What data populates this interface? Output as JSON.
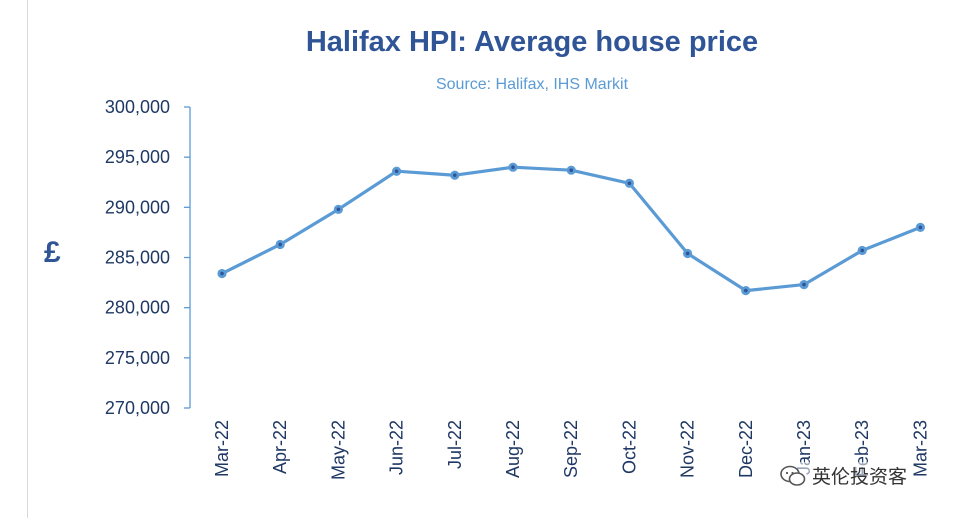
{
  "watermark": {
    "text": "英伦投资客",
    "icon": "wechat-bubble-icon"
  },
  "colors": {
    "title": "#2f5597",
    "subtitle": "#5b9bd5",
    "line": "#5b9bd5",
    "axis": "#5b9bd5",
    "ticks": "#1f3864"
  },
  "chart_data": {
    "type": "line",
    "title": "Halifax HPI: Average house price",
    "subtitle": "Source: Halifax, IHS Markit",
    "xlabel": "",
    "ylabel": "£",
    "ylim": [
      270000,
      300000
    ],
    "yticks": [
      "270,000",
      "275,000",
      "280,000",
      "285,000",
      "290,000",
      "295,000",
      "300,000"
    ],
    "ytick_values": [
      270000,
      275000,
      280000,
      285000,
      290000,
      295000,
      300000
    ],
    "categories": [
      "Mar-22",
      "Apr-22",
      "May-22",
      "Jun-22",
      "Jul-22",
      "Aug-22",
      "Sep-22",
      "Oct-22",
      "Nov-22",
      "Dec-22",
      "Jan-23",
      "Feb-23",
      "Mar-23"
    ],
    "series": [
      {
        "values": [
          283400,
          286300,
          289800,
          293600,
          293200,
          294000,
          293700,
          292400,
          285400,
          281700,
          282300,
          285700,
          288000
        ]
      }
    ],
    "grid": false,
    "legend": "none"
  }
}
